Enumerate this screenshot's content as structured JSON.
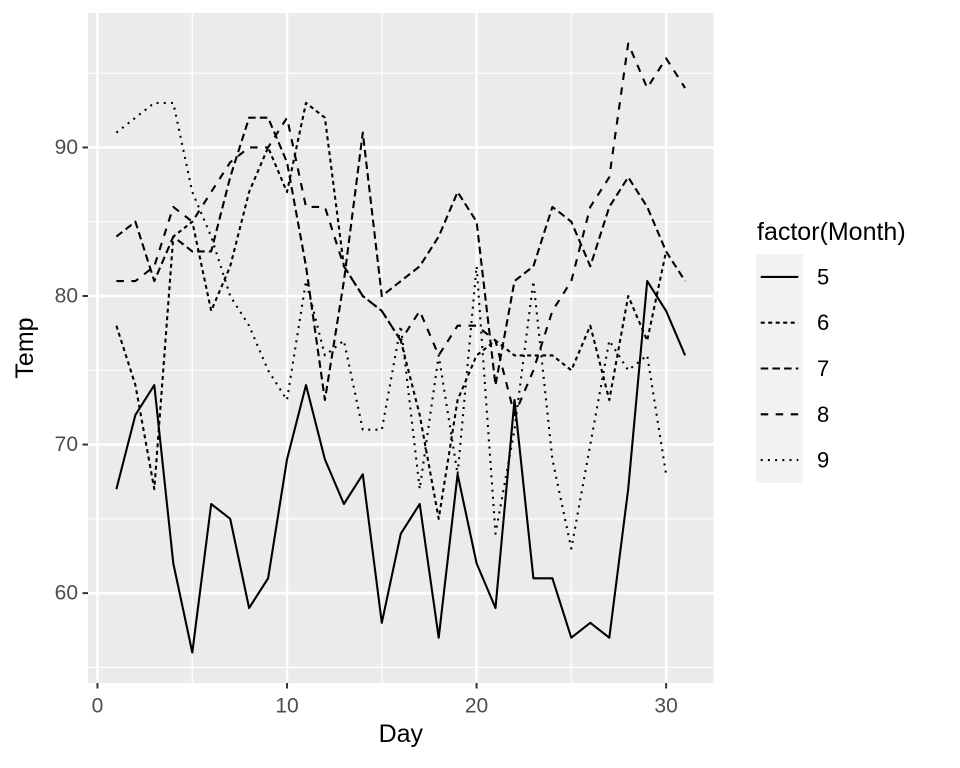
{
  "chart_data": {
    "type": "line",
    "title": "",
    "xlabel": "Day",
    "ylabel": "Temp",
    "legend_title": "factor(Month)",
    "legend_position": "right",
    "grid": true,
    "xlim": [
      -0.5,
      32.5
    ],
    "ylim": [
      53.95,
      99.05
    ],
    "x_ticks": [
      0,
      10,
      20,
      30
    ],
    "x_minor_ticks": [
      5,
      15,
      25
    ],
    "y_ticks": [
      60,
      70,
      80,
      90
    ],
    "y_minor_ticks": [
      55,
      65,
      75,
      85,
      95
    ],
    "colors": {
      "panel_background": "#EBEBEB",
      "gridline": "#FFFFFF",
      "tick_mark": "#333333",
      "tick_label": "#4D4D4D",
      "axis_title": "#000000",
      "line": "#000000",
      "legend_key_background": "#F2F2F2",
      "legend_text": "#000000",
      "page_background": "#FFFFFF"
    },
    "series": [
      {
        "name": "5",
        "linetype": "solid",
        "x": [
          1,
          2,
          3,
          4,
          5,
          6,
          7,
          8,
          9,
          10,
          11,
          12,
          13,
          14,
          15,
          16,
          17,
          18,
          19,
          20,
          21,
          22,
          23,
          24,
          25,
          26,
          27,
          28,
          29,
          30,
          31
        ],
        "values": [
          67,
          72,
          74,
          62,
          56,
          66,
          65,
          59,
          61,
          69,
          74,
          69,
          66,
          68,
          58,
          64,
          66,
          57,
          68,
          62,
          59,
          73,
          61,
          61,
          57,
          58,
          57,
          67,
          81,
          79,
          76
        ]
      },
      {
        "name": "6",
        "linetype": "dash22",
        "x": [
          1,
          2,
          3,
          4,
          5,
          6,
          7,
          8,
          9,
          10,
          11,
          12,
          13,
          14,
          15,
          16,
          17,
          18,
          19,
          20,
          21,
          22,
          23,
          24,
          25,
          26,
          27,
          28,
          29,
          30
        ],
        "values": [
          78,
          74,
          67,
          84,
          85,
          79,
          82,
          87,
          90,
          87,
          93,
          92,
          82,
          80,
          79,
          77,
          72,
          65,
          73,
          76,
          77,
          76,
          76,
          76,
          75,
          78,
          73,
          80,
          77,
          83
        ]
      },
      {
        "name": "7",
        "linetype": "dash42",
        "x": [
          1,
          2,
          3,
          4,
          5,
          6,
          7,
          8,
          9,
          10,
          11,
          12,
          13,
          14,
          15,
          16,
          17,
          18,
          19,
          20,
          21,
          22,
          23,
          24,
          25,
          26,
          27,
          28,
          29,
          30,
          31
        ],
        "values": [
          84,
          85,
          81,
          84,
          83,
          83,
          88,
          92,
          92,
          89,
          82,
          73,
          81,
          91,
          80,
          81,
          82,
          84,
          87,
          85,
          74,
          81,
          82,
          86,
          85,
          82,
          86,
          88,
          86,
          83,
          81
        ]
      },
      {
        "name": "8",
        "linetype": "dash44",
        "x": [
          1,
          2,
          3,
          4,
          5,
          6,
          7,
          8,
          9,
          10,
          11,
          12,
          13,
          14,
          15,
          16,
          17,
          18,
          19,
          20,
          21,
          22,
          23,
          24,
          25,
          26,
          27,
          28,
          29,
          30,
          31
        ],
        "values": [
          81,
          81,
          82,
          86,
          85,
          87,
          89,
          90,
          90,
          92,
          86,
          86,
          82,
          80,
          79,
          77,
          79,
          76,
          78,
          78,
          77,
          72,
          75,
          79,
          81,
          86,
          88,
          97,
          94,
          96,
          94
        ]
      },
      {
        "name": "9",
        "linetype": "dash13",
        "x": [
          1,
          2,
          3,
          4,
          5,
          6,
          7,
          8,
          9,
          10,
          11,
          12,
          13,
          14,
          15,
          16,
          17,
          18,
          19,
          20,
          21,
          22,
          23,
          24,
          25,
          26,
          27,
          28,
          29,
          30
        ],
        "values": [
          91,
          92,
          93,
          93,
          87,
          84,
          80,
          78,
          75,
          73,
          81,
          76,
          77,
          71,
          71,
          78,
          67,
          76,
          68,
          82,
          64,
          71,
          81,
          69,
          63,
          70,
          77,
          75,
          76,
          68
        ]
      }
    ]
  }
}
